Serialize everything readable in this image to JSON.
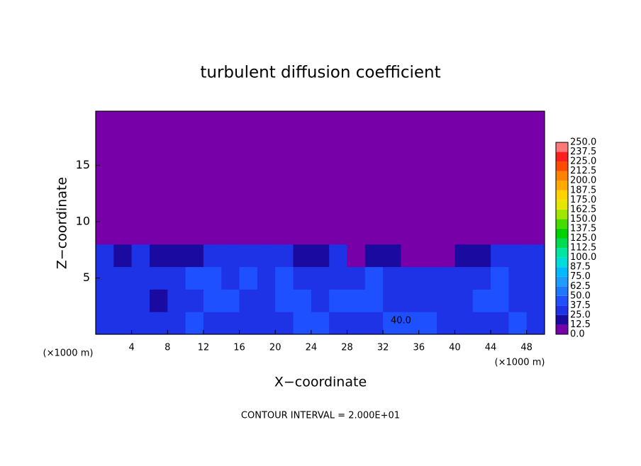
{
  "chart_data": {
    "type": "contour",
    "title": "turbulent diffusion coefficient",
    "x_label": "X−coordinate",
    "y_label": "Z−coordinate",
    "x_unit": "(×1000 m)",
    "y_unit": "(×1000 m)",
    "footer": "CONTOUR INTERVAL = 2.000E+01",
    "annotations": [
      {
        "text": "40.0",
        "x": 34,
        "y": 1.2
      }
    ],
    "xlim": [
      0,
      50
    ],
    "ylim": [
      0,
      19.8
    ],
    "xticks": [
      4,
      8,
      12,
      16,
      20,
      24,
      28,
      32,
      36,
      40,
      44,
      48
    ],
    "yticks": [
      5,
      10,
      15
    ],
    "colorbar": {
      "levels": [
        {
          "value": 0,
          "label": "0.0"
        },
        12.5,
        {
          "value": 25,
          "label": "25.0"
        },
        37.5,
        {
          "value": 50,
          "label": "50.0"
        },
        62.5,
        {
          "value": 75,
          "label": "75.0"
        },
        87.5,
        {
          "value": 100,
          "label": "100.0"
        },
        112.5,
        {
          "value": 125,
          "label": "125.0"
        },
        137.5,
        {
          "value": 150,
          "label": "150.0"
        },
        162.5,
        {
          "value": 175,
          "label": "175.0"
        },
        187.5,
        {
          "value": 200,
          "label": "200.0"
        },
        212.5,
        {
          "value": 225,
          "label": "225.0"
        },
        237.5,
        {
          "value": 250,
          "label": "250.0"
        }
      ],
      "colors": [
        "#7800a8",
        "#1a0aa0",
        "#1e32e6",
        "#1e50ff",
        "#1e78ff",
        "#1e9bff",
        "#00b9ff",
        "#00dcdc",
        "#00e6a0",
        "#00dc50",
        "#00d200",
        "#46dc00",
        "#a0e600",
        "#e6e600",
        "#ffd200",
        "#ffaa00",
        "#ff8200",
        "#ff4b00",
        "#ff1e1e",
        "#ff7878"
      ]
    },
    "field": {
      "x": [
        1,
        3,
        5,
        7,
        9,
        11,
        13,
        15,
        17,
        19,
        21,
        23,
        25,
        27,
        29,
        31,
        33,
        35,
        37,
        39,
        41,
        43,
        45,
        47,
        49
      ],
      "z": [
        1,
        3,
        5,
        7,
        9
      ],
      "values": [
        [
          30,
          35,
          25,
          30,
          35,
          40,
          30,
          30,
          35,
          30,
          35,
          40,
          40,
          30,
          30,
          35,
          40,
          45,
          40,
          35,
          35,
          30,
          35,
          40,
          35
        ],
        [
          30,
          25,
          35,
          20,
          30,
          35,
          45,
          40,
          30,
          35,
          45,
          40,
          35,
          40,
          40,
          45,
          35,
          30,
          30,
          30,
          35,
          40,
          45,
          35,
          30
        ],
        [
          25,
          30,
          30,
          25,
          30,
          40,
          45,
          35,
          40,
          35,
          40,
          35,
          30,
          35,
          30,
          40,
          35,
          30,
          25,
          30,
          25,
          35,
          40,
          30,
          30
        ],
        [
          25,
          20,
          25,
          20,
          20,
          15,
          25,
          30,
          35,
          30,
          25,
          20,
          20,
          25,
          10,
          15,
          20,
          10,
          5,
          5,
          15,
          20,
          30,
          30,
          30
        ],
        [
          0,
          0,
          0,
          0,
          0,
          0,
          0,
          0,
          5,
          5,
          0,
          0,
          0,
          0,
          0,
          0,
          0,
          0,
          0,
          0,
          0,
          0,
          0,
          5,
          5
        ]
      ]
    }
  }
}
